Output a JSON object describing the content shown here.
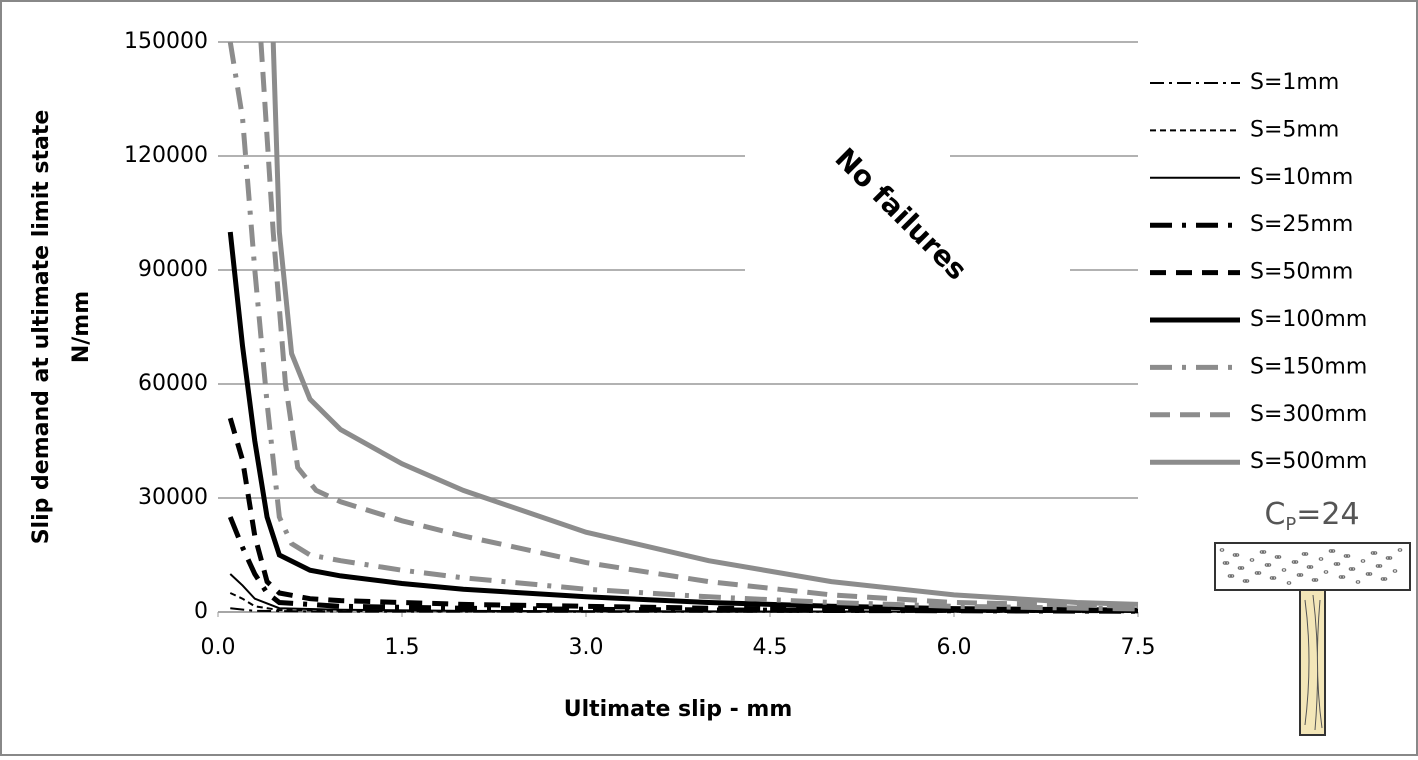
{
  "chart_data": {
    "type": "line",
    "xlabel": "Ultimate slip - mm",
    "ylabel": [
      "Slip demand at ultimate limit state",
      "N/mm"
    ],
    "annotation": "No failures",
    "section_label": {
      "main": "C",
      "sub": "P",
      "rest": "=24"
    },
    "xlim": [
      0,
      7.5
    ],
    "ylim": [
      0,
      150000
    ],
    "xticks": [
      {
        "value": 0,
        "label": "0.0"
      },
      1.5,
      {
        "value": 3,
        "label": "3.0"
      },
      4.5,
      {
        "value": 6,
        "label": "6.0"
      },
      7.5
    ],
    "yticks": [
      0,
      30000,
      60000,
      90000,
      120000,
      150000
    ],
    "grid": true,
    "series": [
      {
        "name": "S=1mm",
        "color": "#000000",
        "width": 2,
        "dash": "14,5,3,5",
        "x": [
          0.1,
          0.3,
          1,
          7.5
        ],
        "values": [
          1000,
          300,
          100,
          20
        ]
      },
      {
        "name": "S=5mm",
        "color": "#000000",
        "width": 2,
        "dash": "6,4",
        "x": [
          0.1,
          0.2,
          0.3,
          0.5,
          1,
          2,
          7.5
        ],
        "values": [
          5000,
          3500,
          1500,
          500,
          300,
          150,
          50
        ]
      },
      {
        "name": "S=10mm",
        "color": "#000000",
        "width": 2,
        "dash": "",
        "x": [
          0.1,
          0.2,
          0.3,
          0.5,
          1,
          2,
          4,
          7.5
        ],
        "values": [
          10000,
          7000,
          3500,
          1000,
          600,
          300,
          150,
          100
        ]
      },
      {
        "name": "S=25mm",
        "color": "#000000",
        "width": 5,
        "dash": "22,10,4,10",
        "x": [
          0.1,
          0.2,
          0.3,
          0.4,
          0.5,
          1,
          2,
          3,
          5,
          7.5
        ],
        "values": [
          25000,
          17000,
          10000,
          5000,
          2500,
          1500,
          1000,
          700,
          400,
          200
        ]
      },
      {
        "name": "S=50mm",
        "color": "#000000",
        "width": 5,
        "dash": "16,10",
        "x": [
          0.1,
          0.2,
          0.3,
          0.4,
          0.5,
          0.75,
          1,
          2,
          3,
          4,
          5,
          7.5
        ],
        "values": [
          51000,
          40000,
          20000,
          8000,
          5000,
          3500,
          3000,
          2000,
          1500,
          1000,
          700,
          300
        ]
      },
      {
        "name": "S=100mm",
        "color": "#000000",
        "width": 5,
        "dash": "",
        "x": [
          0.1,
          0.2,
          0.3,
          0.4,
          0.5,
          0.75,
          1,
          1.5,
          2,
          3,
          4,
          5,
          6,
          7.5
        ],
        "values": [
          100000,
          70000,
          45000,
          25000,
          15000,
          11000,
          9500,
          7500,
          6000,
          4000,
          2500,
          1500,
          900,
          500
        ]
      },
      {
        "name": "S=150mm",
        "color": "#8c8c8c",
        "width": 5,
        "dash": "22,10,4,10",
        "x": [
          0.1,
          0.2,
          0.3,
          0.4,
          0.5,
          0.6,
          0.75,
          1,
          1.5,
          2,
          3,
          4,
          5,
          6,
          7.5
        ],
        "values": [
          150000,
          130000,
          90000,
          55000,
          25000,
          18000,
          15000,
          13500,
          11000,
          9000,
          6000,
          4000,
          2500,
          1500,
          800
        ]
      },
      {
        "name": "S=300mm",
        "color": "#8c8c8c",
        "width": 5,
        "dash": "20,10",
        "x": [
          0.35,
          0.45,
          0.55,
          0.65,
          0.8,
          1,
          1.5,
          2,
          3,
          4,
          5,
          6,
          7.5
        ],
        "values": [
          150000,
          100000,
          60000,
          38000,
          32000,
          29000,
          24000,
          20000,
          13000,
          8000,
          4500,
          2500,
          1500
        ]
      },
      {
        "name": "S=500mm",
        "color": "#8c8c8c",
        "width": 5,
        "dash": "",
        "x": [
          0.45,
          0.5,
          0.6,
          0.75,
          1,
          1.5,
          2,
          3,
          4,
          5,
          6,
          7,
          7.5
        ],
        "values": [
          150000,
          100000,
          68000,
          56000,
          48000,
          39000,
          32000,
          21000,
          13500,
          8000,
          4500,
          2500,
          2000
        ]
      }
    ]
  }
}
